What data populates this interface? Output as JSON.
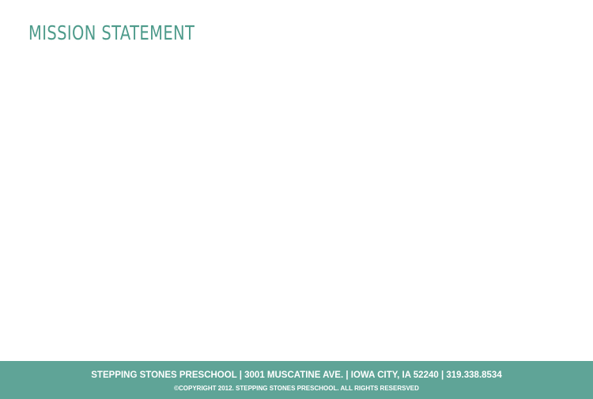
{
  "colors": {
    "accent": "#4e9b8b",
    "footer_bg": "#5fa497",
    "footer_text": "#ffffff",
    "background": "#ffffff"
  },
  "main": {
    "title": "MISSION STATEMENT"
  },
  "footer": {
    "address_line": "STEPPING STONES PRESCHOOL | 3001 MUSCATINE AVE. | IOWA CITY, IA 52240 | 319.338.8534",
    "copyright_line": "©COPYRIGHT 2012. STEPPING STONES PRESCHOOL. ALL RIGHTS RESERSVED"
  }
}
